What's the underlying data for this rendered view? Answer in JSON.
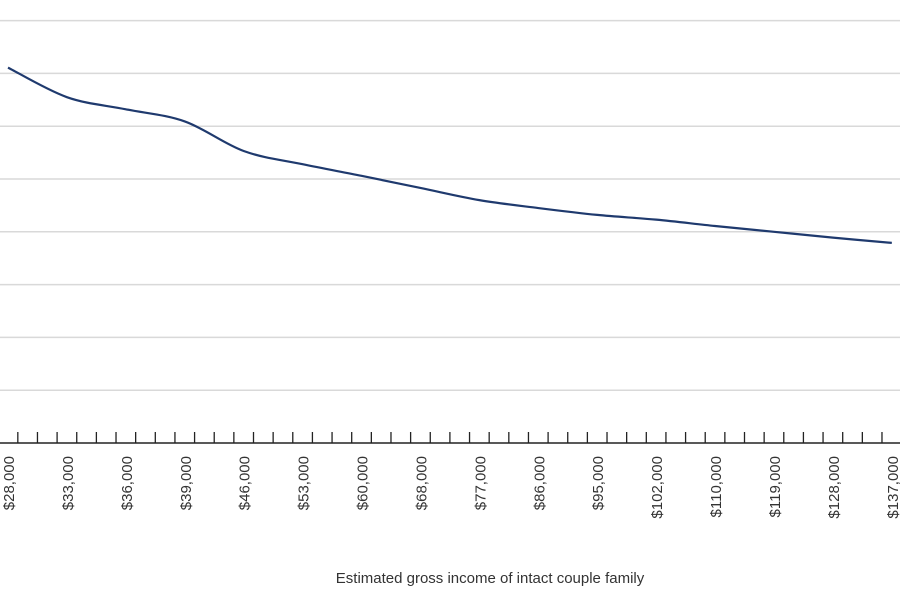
{
  "chart_data": {
    "type": "line",
    "title": "",
    "xlabel": "Estimated gross income of intact couple family",
    "ylabel": "",
    "categories": [
      "$28,000",
      "$33,000",
      "$36,000",
      "$39,000",
      "$46,000",
      "$53,000",
      "$60,000",
      "$68,000",
      "$77,000",
      "$86,000",
      "$95,000",
      "$102,000",
      "$110,000",
      "$119,000",
      "$128,000",
      "$137,000"
    ],
    "series": [
      {
        "values": [
          7.11,
          6.55,
          6.32,
          6.09,
          5.53,
          5.28,
          5.06,
          4.83,
          4.6,
          4.45,
          4.32,
          4.23,
          4.11,
          4.0,
          3.89,
          3.79
        ]
      }
    ],
    "ylim": [
      0,
      8
    ],
    "y_tick_labels_shown": false,
    "grid": true,
    "legend": "none",
    "colors": {
      "line": "#1f3a6e",
      "grid": "#d9d9d9",
      "axis": "#222222"
    }
  }
}
